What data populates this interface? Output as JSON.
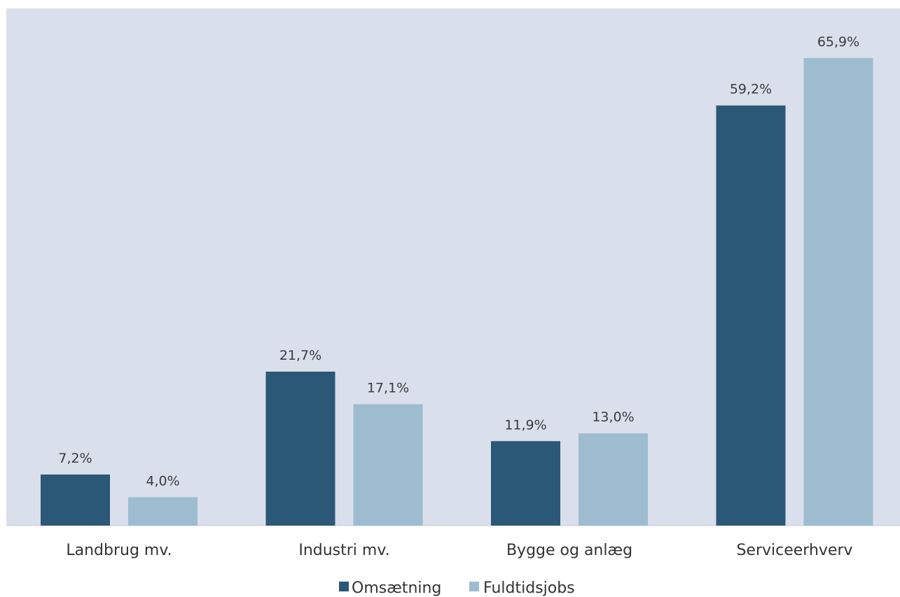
{
  "chart_data": {
    "type": "bar",
    "title": "",
    "xlabel": "",
    "ylabel": "",
    "ylim": [
      0,
      70
    ],
    "grid": false,
    "legend": "bottom",
    "categories": [
      "Landbrug mv.",
      "Industri mv.",
      "Bygge og anlæg",
      "Serviceerhverv"
    ],
    "series": [
      {
        "name": "Omsætning",
        "color": "#2b5876",
        "values": [
          7.2,
          21.7,
          11.9,
          59.2
        ],
        "labels": [
          "7,2%",
          "21,7%",
          "11,9%",
          "59,2%"
        ]
      },
      {
        "name": "Fuldtidsjobs",
        "color": "#9dbccf",
        "values": [
          4.0,
          17.1,
          13.0,
          65.9
        ],
        "labels": [
          "4,0%",
          "17,1%",
          "13,0%",
          "65,9%"
        ]
      }
    ],
    "plot_background": "#d9dfeb"
  }
}
